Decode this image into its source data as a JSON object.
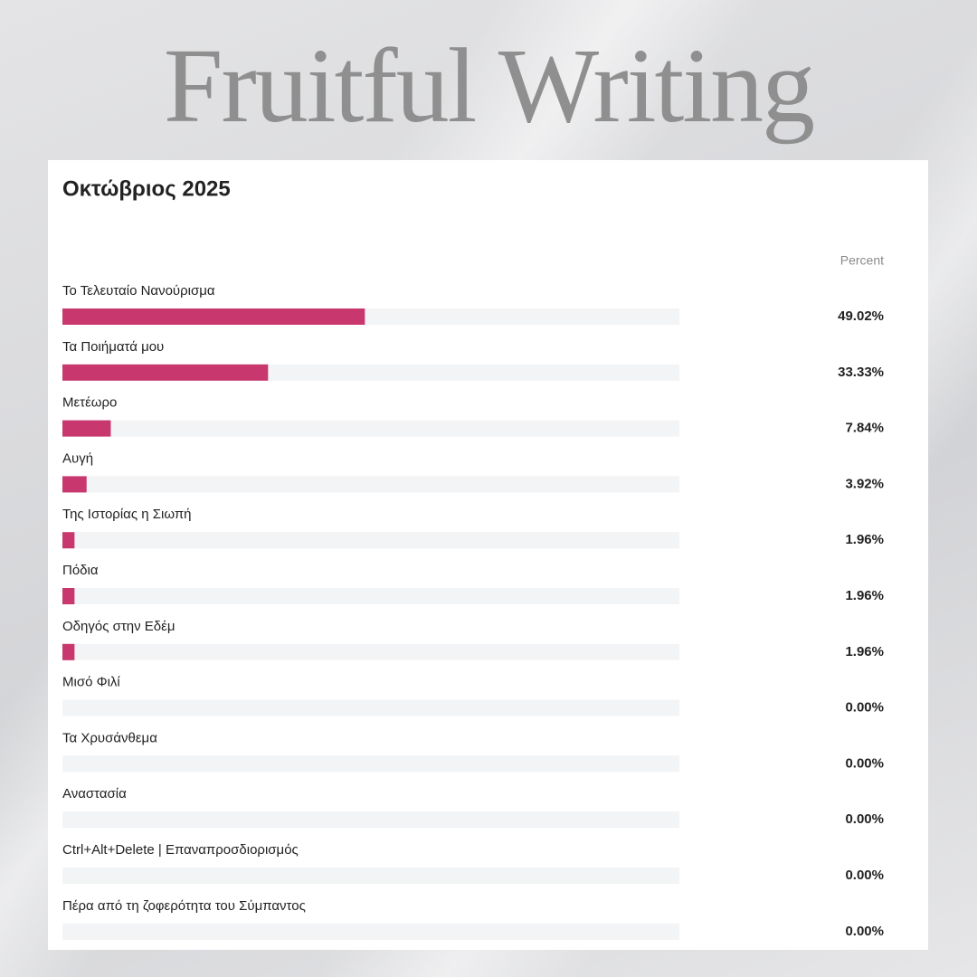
{
  "brand": "Fruitful Writing",
  "chart_data": {
    "type": "bar",
    "orientation": "horizontal",
    "title": "Οκτώβριος 2025",
    "value_header": "Percent",
    "categories": [
      "Το Τελευταίο Νανούρισμα",
      "Τα Ποιήματά μου",
      "Μετέωρο",
      "Αυγή",
      "Της Ιστορίας η Σιωπή",
      "Πόδια",
      "Οδηγός στην Εδέμ",
      "Μισό Φιλί",
      "Τα Χρυσάνθεμα",
      "Αναστασία",
      "Ctrl+Alt+Delete | Επαναπροσδιορισμός",
      "Πέρα από τη ζοφερότητα του Σύμπαντος"
    ],
    "values": [
      49.02,
      33.33,
      7.84,
      3.92,
      1.96,
      1.96,
      1.96,
      0,
      0,
      0,
      0,
      0
    ],
    "value_labels": [
      "49.02%",
      "33.33%",
      "7.84%",
      "3.92%",
      "1.96%",
      "1.96%",
      "1.96%",
      "0.00%",
      "0.00%",
      "0.00%",
      "0.00%",
      "0.00%"
    ],
    "color": "#c8386e",
    "track_color": "#f3f4f5",
    "xlim": [
      0,
      100
    ]
  }
}
